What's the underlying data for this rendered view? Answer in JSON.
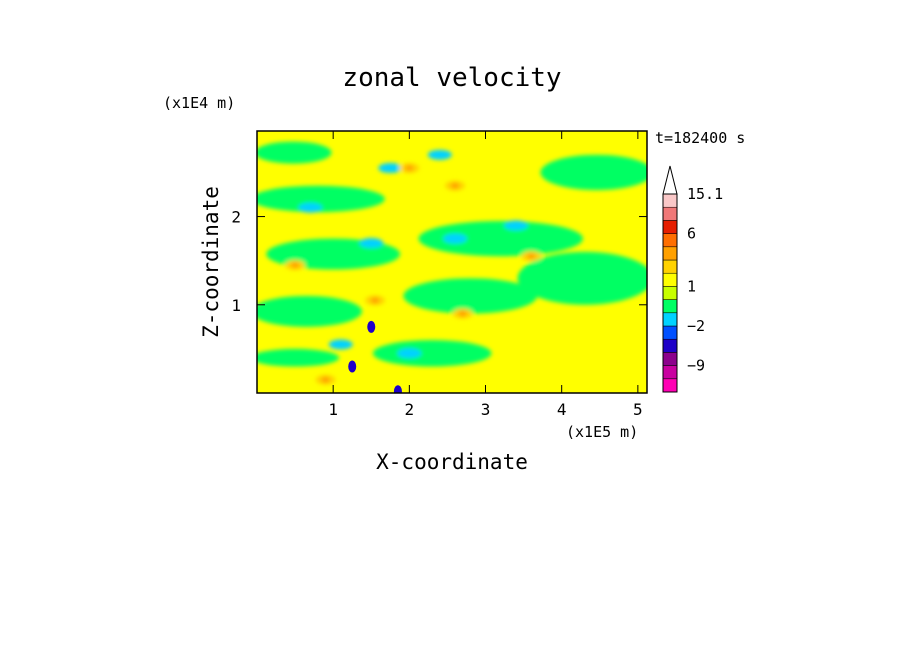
{
  "chart_data": {
    "type": "heatmap",
    "title": "zonal velocity",
    "xlabel": "X-coordinate",
    "ylabel": "Z-coordinate",
    "x_unit": "(x1E5 m)",
    "y_unit": "(x1E4 m)",
    "time_label": "t=182400 s",
    "xlim": [
      0,
      5.12
    ],
    "ylim": [
      0,
      2.97
    ],
    "x_ticks": [
      "1",
      "2",
      "3",
      "4",
      "5"
    ],
    "y_ticks": [
      "1",
      "2"
    ],
    "x_tick_values": [
      1,
      2,
      3,
      4,
      5
    ],
    "y_tick_values": [
      1,
      2
    ],
    "colorbar": {
      "labels": [
        "15.1",
        "6",
        "1",
        "−2",
        "−9"
      ],
      "levels": [
        -12,
        -9,
        -6,
        -3,
        -2,
        -1,
        0,
        1,
        2,
        3,
        4,
        6,
        9,
        12,
        15.1
      ],
      "colors": [
        "#ff00b4",
        "#c800a0",
        "#8c008c",
        "#1e00c8",
        "#0050ff",
        "#00d2ff",
        "#00ff64",
        "#c8ff00",
        "#ffff00",
        "#ffd200",
        "#ffa000",
        "#ff6e00",
        "#e61e00",
        "#f07878",
        "#fac8c8",
        "#ffffff"
      ]
    },
    "patterns": {
      "background": "#ffff00",
      "green_bands": [
        {
          "x": [
            0.05,
            0.9
          ],
          "y": [
            2.6,
            2.85
          ]
        },
        {
          "x": [
            0.0,
            1.6
          ],
          "y": [
            2.05,
            2.35
          ]
        },
        {
          "x": [
            0.2,
            1.8
          ],
          "y": [
            1.4,
            1.75
          ]
        },
        {
          "x": [
            0.0,
            1.3
          ],
          "y": [
            0.75,
            1.1
          ]
        },
        {
          "x": [
            0.0,
            1.0
          ],
          "y": [
            0.3,
            0.5
          ]
        },
        {
          "x": [
            2.2,
            4.2
          ],
          "y": [
            1.55,
            1.95
          ]
        },
        {
          "x": [
            2.0,
            3.6
          ],
          "y": [
            0.9,
            1.3
          ]
        },
        {
          "x": [
            3.5,
            5.12
          ],
          "y": [
            1.0,
            1.6
          ]
        },
        {
          "x": [
            3.8,
            5.12
          ],
          "y": [
            2.3,
            2.7
          ]
        },
        {
          "x": [
            1.6,
            3.0
          ],
          "y": [
            0.3,
            0.6
          ]
        }
      ],
      "cyan_spots": [
        {
          "x": 1.5,
          "y": 1.7
        },
        {
          "x": 2.6,
          "y": 1.75
        },
        {
          "x": 3.4,
          "y": 1.9
        },
        {
          "x": 0.7,
          "y": 2.1
        },
        {
          "x": 1.1,
          "y": 0.55
        },
        {
          "x": 2.0,
          "y": 0.45
        },
        {
          "x": 1.75,
          "y": 2.55
        },
        {
          "x": 2.4,
          "y": 2.7
        }
      ],
      "orange_spots": [
        {
          "x": 1.55,
          "y": 1.05
        },
        {
          "x": 0.9,
          "y": 0.15
        },
        {
          "x": 2.7,
          "y": 0.9
        },
        {
          "x": 2.6,
          "y": 2.35
        },
        {
          "x": 3.6,
          "y": 1.55
        },
        {
          "x": 0.5,
          "y": 1.45
        },
        {
          "x": 2.0,
          "y": 2.55
        }
      ],
      "blue_spots": [
        {
          "x": 1.25,
          "y": 0.3
        },
        {
          "x": 1.5,
          "y": 0.75
        },
        {
          "x": 1.85,
          "y": 0.02
        }
      ]
    }
  }
}
